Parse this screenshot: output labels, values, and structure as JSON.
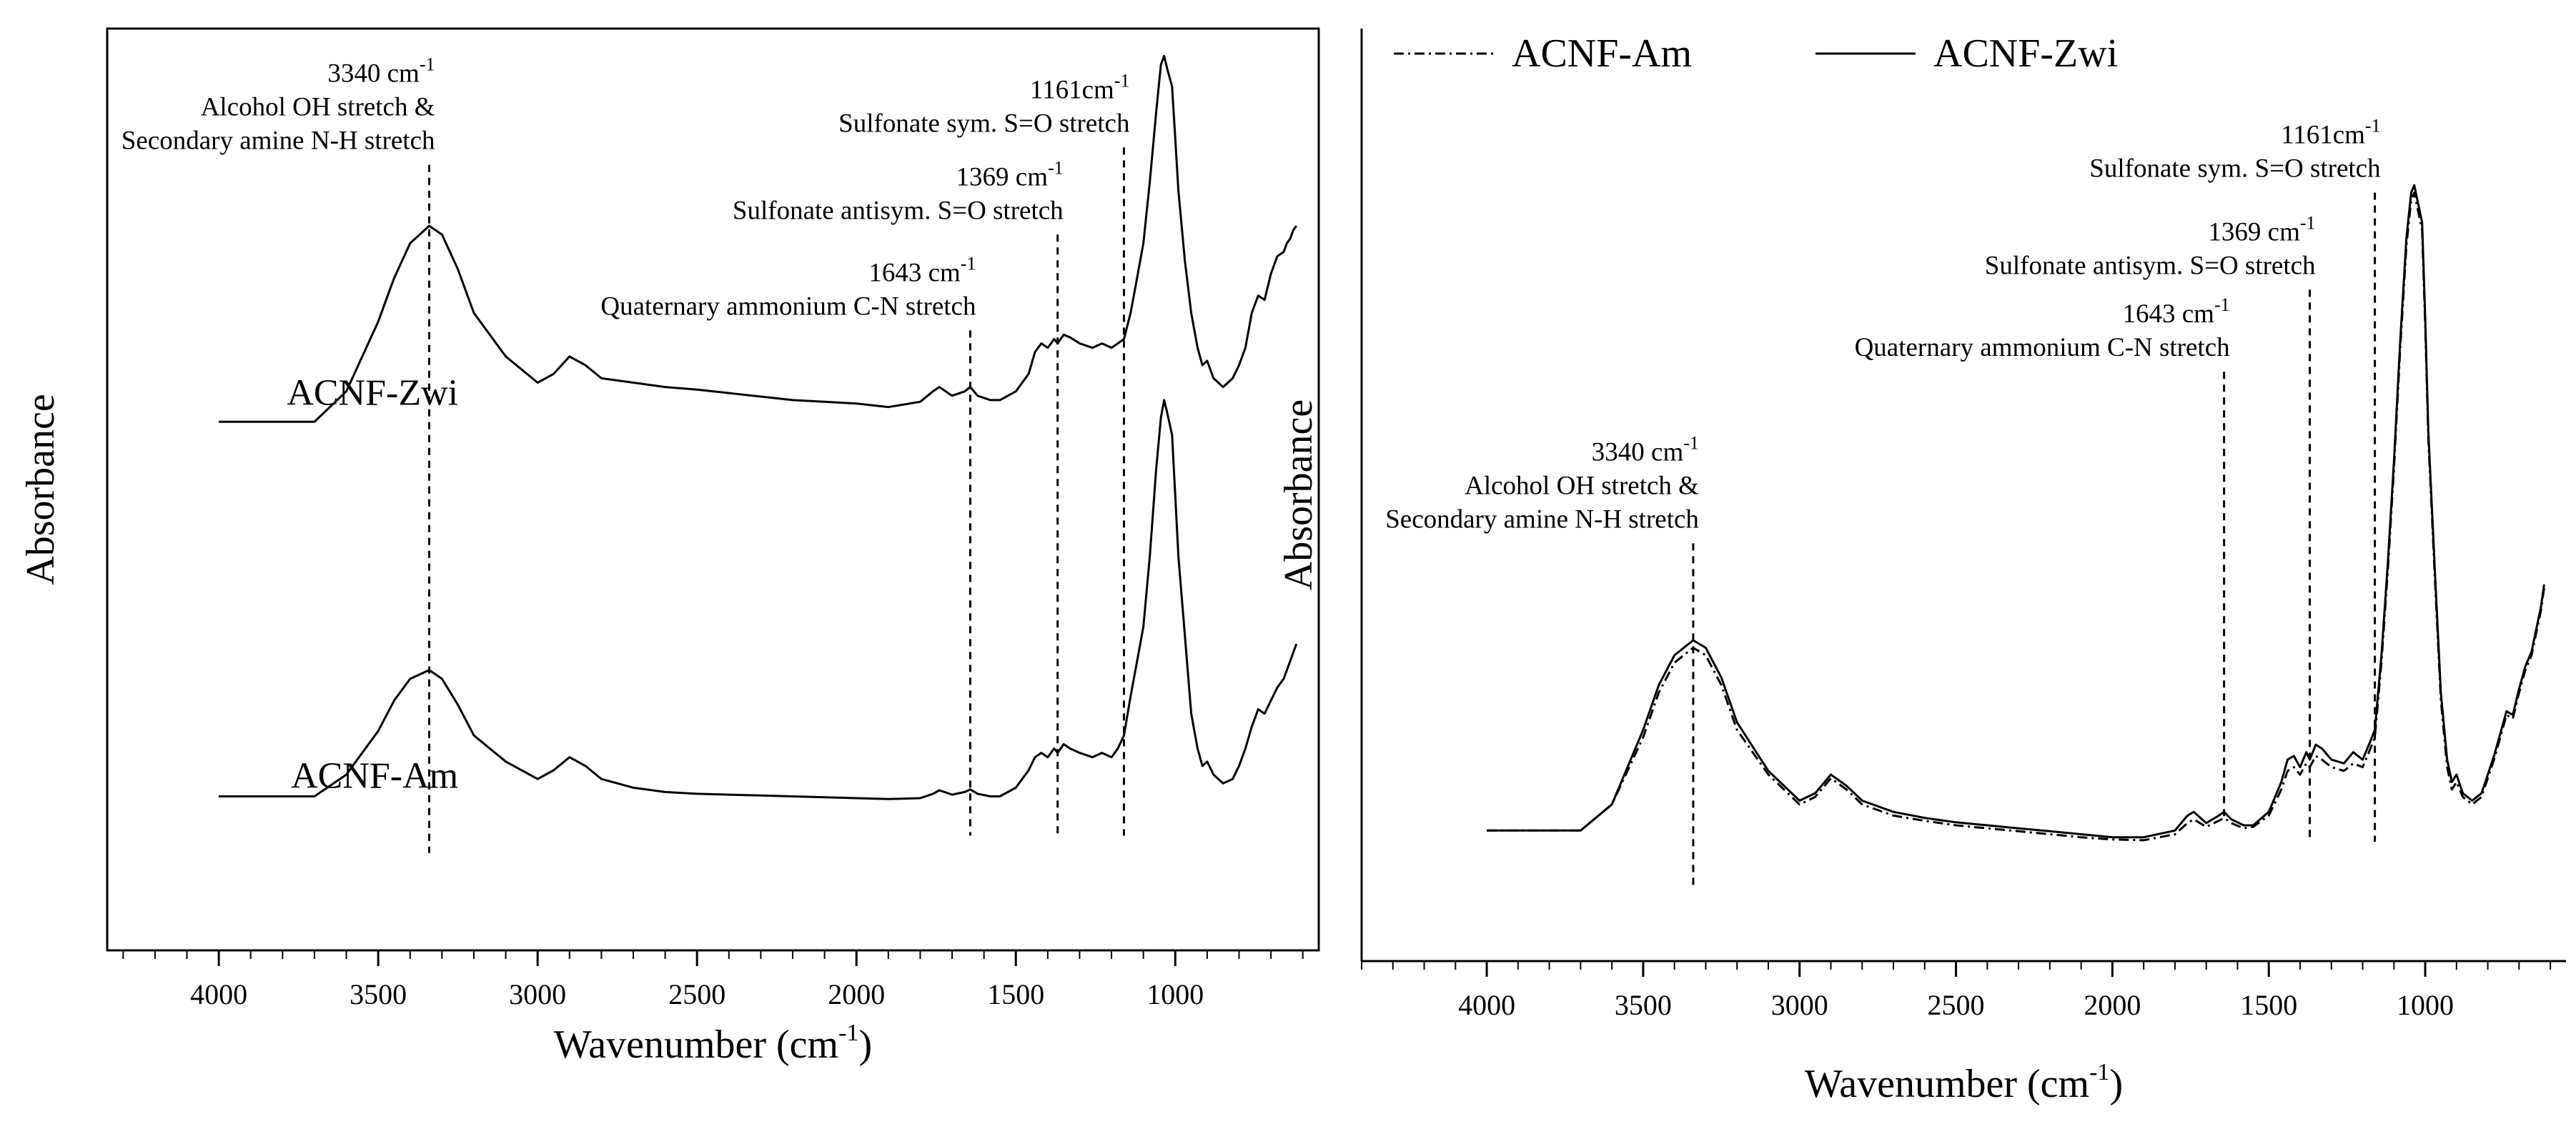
{
  "colors": {
    "axis": "#000000",
    "trace": "#000000",
    "background": "#ffffff"
  },
  "chart_data": [
    {
      "type": "line",
      "panel": "left",
      "title": "",
      "xlabel": "Wavenumber (cm",
      "xlabel_sup": "-1",
      "xlabel_close": ")",
      "ylabel": "Absorbance",
      "xlim": [
        4350,
        550
      ],
      "ylim": [
        0,
        1
      ],
      "x_ticks": [
        4000,
        3500,
        3000,
        2500,
        2000,
        1500,
        1000
      ],
      "x_tick_labels": [
        "4000",
        "3500",
        "3000",
        "2500",
        "2000",
        "1500",
        "1000"
      ],
      "series": [
        {
          "name": "ACNF-Zwi",
          "style": "solid",
          "label_anchor": [
            4000,
            0.58
          ],
          "x": [
            4000,
            3700,
            3600,
            3500,
            3450,
            3400,
            3340,
            3300,
            3250,
            3200,
            3100,
            3000,
            2950,
            2900,
            2850,
            2800,
            2700,
            2600,
            2500,
            2400,
            2300,
            2200,
            2100,
            2000,
            1900,
            1800,
            1760,
            1740,
            1700,
            1660,
            1643,
            1620,
            1580,
            1550,
            1500,
            1460,
            1440,
            1420,
            1400,
            1380,
            1369,
            1350,
            1330,
            1300,
            1260,
            1230,
            1200,
            1180,
            1161,
            1140,
            1120,
            1100,
            1080,
            1060,
            1045,
            1035,
            1025,
            1010,
            1000,
            990,
            970,
            950,
            930,
            915,
            900,
            880,
            850,
            820,
            800,
            780,
            760,
            740,
            720,
            700,
            680,
            660,
            650,
            640,
            630,
            620
          ],
          "y": [
            0.575,
            0.575,
            0.61,
            0.69,
            0.74,
            0.78,
            0.8,
            0.79,
            0.75,
            0.7,
            0.65,
            0.62,
            0.63,
            0.65,
            0.64,
            0.625,
            0.62,
            0.615,
            0.612,
            0.608,
            0.604,
            0.6,
            0.598,
            0.596,
            0.592,
            0.598,
            0.61,
            0.615,
            0.605,
            0.61,
            0.615,
            0.605,
            0.6,
            0.6,
            0.61,
            0.63,
            0.655,
            0.665,
            0.66,
            0.67,
            0.665,
            0.675,
            0.672,
            0.665,
            0.66,
            0.665,
            0.66,
            0.665,
            0.67,
            0.7,
            0.74,
            0.78,
            0.85,
            0.93,
            0.985,
            0.995,
            0.98,
            0.96,
            0.9,
            0.84,
            0.76,
            0.7,
            0.66,
            0.64,
            0.645,
            0.625,
            0.615,
            0.625,
            0.64,
            0.66,
            0.7,
            0.72,
            0.715,
            0.745,
            0.765,
            0.77,
            0.78,
            0.785,
            0.795,
            0.8
          ]
        },
        {
          "name": "ACNF-Am",
          "style": "solid",
          "label_anchor": [
            4000,
            0.14
          ],
          "x": [
            4000,
            3700,
            3600,
            3500,
            3450,
            3400,
            3340,
            3300,
            3250,
            3200,
            3100,
            3000,
            2950,
            2900,
            2850,
            2800,
            2700,
            2600,
            2500,
            2400,
            2300,
            2200,
            2100,
            2000,
            1900,
            1800,
            1760,
            1740,
            1700,
            1660,
            1643,
            1620,
            1580,
            1550,
            1500,
            1460,
            1440,
            1420,
            1400,
            1380,
            1369,
            1350,
            1330,
            1300,
            1260,
            1230,
            1200,
            1180,
            1161,
            1140,
            1120,
            1100,
            1080,
            1060,
            1045,
            1035,
            1025,
            1010,
            1000,
            990,
            970,
            950,
            930,
            915,
            900,
            880,
            850,
            820,
            800,
            780,
            760,
            740,
            720,
            700,
            680,
            660,
            650,
            640,
            630,
            620
          ],
          "y": [
            0.145,
            0.145,
            0.17,
            0.22,
            0.255,
            0.28,
            0.29,
            0.28,
            0.25,
            0.215,
            0.185,
            0.165,
            0.175,
            0.19,
            0.18,
            0.165,
            0.155,
            0.15,
            0.148,
            0.147,
            0.146,
            0.145,
            0.144,
            0.143,
            0.142,
            0.143,
            0.148,
            0.152,
            0.147,
            0.15,
            0.153,
            0.148,
            0.145,
            0.145,
            0.155,
            0.175,
            0.19,
            0.195,
            0.19,
            0.2,
            0.195,
            0.205,
            0.2,
            0.195,
            0.19,
            0.195,
            0.19,
            0.2,
            0.215,
            0.26,
            0.3,
            0.34,
            0.42,
            0.52,
            0.58,
            0.6,
            0.585,
            0.56,
            0.49,
            0.42,
            0.33,
            0.24,
            0.2,
            0.18,
            0.185,
            0.17,
            0.16,
            0.165,
            0.18,
            0.2,
            0.225,
            0.245,
            0.24,
            0.255,
            0.27,
            0.28,
            0.29,
            0.3,
            0.31,
            0.32
          ]
        }
      ],
      "annotations": [
        {
          "x": 3340,
          "top": 0.87,
          "bottom": 0.08,
          "lines": [
            "3340 cm",
            "Alcohol OH stretch &",
            "Secondary amine N-H stretch"
          ],
          "sup": "-1"
        },
        {
          "x": 1643,
          "top": 0.68,
          "bottom": 0.1,
          "lines": [
            "1643 cm",
            "Quaternary ammonium C-N stretch"
          ],
          "sup": "-1"
        },
        {
          "x": 1369,
          "top": 0.79,
          "bottom": 0.1,
          "lines": [
            "1369 cm",
            "Sulfonate antisym. S=O stretch"
          ],
          "sup": "-1"
        },
        {
          "x": 1161,
          "top": 0.89,
          "bottom": 0.1,
          "lines": [
            "1161cm",
            "Sulfonate sym. S=O stretch"
          ],
          "sup": "-1"
        }
      ]
    },
    {
      "type": "line",
      "panel": "right",
      "title": "",
      "xlabel": "Wavenumber (cm",
      "xlabel_sup": "-1",
      "xlabel_close": ")",
      "ylabel": "Absorbance",
      "xlim": [
        4400,
        550
      ],
      "ylim": [
        0,
        1
      ],
      "x_ticks": [
        4000,
        3500,
        3000,
        2500,
        2000,
        1500,
        1000
      ],
      "x_tick_labels": [
        "4000",
        "3500",
        "3000",
        "2500",
        "2000",
        "1500",
        "1000"
      ],
      "legend": {
        "placement": "top-left",
        "entries": [
          {
            "name": "ACNF-Am",
            "style": "dashdot"
          },
          {
            "name": "ACNF-Zwi",
            "style": "solid"
          }
        ]
      },
      "series": [
        {
          "name": "ACNF-Am",
          "style": "dashdot",
          "x": [
            4000,
            3700,
            3600,
            3500,
            3450,
            3400,
            3340,
            3300,
            3250,
            3200,
            3100,
            3000,
            2950,
            2900,
            2850,
            2800,
            2700,
            2600,
            2500,
            2400,
            2300,
            2200,
            2100,
            2000,
            1900,
            1800,
            1760,
            1740,
            1700,
            1660,
            1643,
            1620,
            1580,
            1550,
            1500,
            1460,
            1440,
            1420,
            1400,
            1380,
            1369,
            1350,
            1330,
            1300,
            1260,
            1230,
            1200,
            1180,
            1161,
            1140,
            1120,
            1100,
            1080,
            1060,
            1045,
            1035,
            1025,
            1010,
            1000,
            990,
            970,
            950,
            930,
            915,
            900,
            880,
            850,
            820,
            800,
            780,
            760,
            740,
            720,
            700,
            680,
            660,
            650,
            640,
            630,
            620
          ],
          "y": [
            0.075,
            0.075,
            0.11,
            0.2,
            0.26,
            0.3,
            0.32,
            0.31,
            0.27,
            0.21,
            0.15,
            0.11,
            0.12,
            0.145,
            0.13,
            0.11,
            0.095,
            0.088,
            0.082,
            0.078,
            0.074,
            0.07,
            0.066,
            0.063,
            0.062,
            0.07,
            0.085,
            0.09,
            0.08,
            0.088,
            0.092,
            0.085,
            0.078,
            0.08,
            0.095,
            0.13,
            0.155,
            0.16,
            0.15,
            0.165,
            0.16,
            0.175,
            0.17,
            0.16,
            0.155,
            0.165,
            0.16,
            0.18,
            0.2,
            0.3,
            0.42,
            0.56,
            0.72,
            0.86,
            0.92,
            0.93,
            0.91,
            0.88,
            0.75,
            0.6,
            0.42,
            0.25,
            0.16,
            0.13,
            0.14,
            0.12,
            0.11,
            0.12,
            0.145,
            0.17,
            0.2,
            0.23,
            0.225,
            0.26,
            0.29,
            0.31,
            0.33,
            0.35,
            0.37,
            0.4
          ]
        },
        {
          "name": "ACNF-Zwi",
          "style": "solid",
          "x": [
            4000,
            3700,
            3600,
            3500,
            3450,
            3400,
            3340,
            3300,
            3250,
            3200,
            3100,
            3000,
            2950,
            2900,
            2850,
            2800,
            2700,
            2600,
            2500,
            2400,
            2300,
            2200,
            2100,
            2000,
            1900,
            1800,
            1760,
            1740,
            1700,
            1660,
            1643,
            1620,
            1580,
            1550,
            1500,
            1460,
            1440,
            1420,
            1400,
            1380,
            1369,
            1350,
            1330,
            1300,
            1260,
            1230,
            1200,
            1180,
            1161,
            1140,
            1120,
            1100,
            1080,
            1060,
            1045,
            1035,
            1025,
            1010,
            1000,
            990,
            970,
            950,
            930,
            915,
            900,
            880,
            850,
            820,
            800,
            780,
            760,
            740,
            720,
            700,
            680,
            660,
            650,
            640,
            630,
            620
          ],
          "y": [
            0.075,
            0.075,
            0.11,
            0.21,
            0.27,
            0.31,
            0.33,
            0.32,
            0.28,
            0.22,
            0.155,
            0.115,
            0.125,
            0.15,
            0.135,
            0.115,
            0.1,
            0.092,
            0.086,
            0.082,
            0.078,
            0.074,
            0.07,
            0.066,
            0.066,
            0.075,
            0.095,
            0.1,
            0.085,
            0.095,
            0.1,
            0.09,
            0.082,
            0.082,
            0.1,
            0.14,
            0.17,
            0.175,
            0.16,
            0.18,
            0.17,
            0.19,
            0.185,
            0.17,
            0.165,
            0.18,
            0.17,
            0.19,
            0.21,
            0.31,
            0.43,
            0.57,
            0.73,
            0.87,
            0.93,
            0.94,
            0.92,
            0.89,
            0.76,
            0.61,
            0.43,
            0.26,
            0.17,
            0.14,
            0.15,
            0.125,
            0.115,
            0.125,
            0.15,
            0.175,
            0.205,
            0.235,
            0.23,
            0.265,
            0.295,
            0.315,
            0.335,
            0.355,
            0.375,
            0.405
          ]
        }
      ],
      "annotations": [
        {
          "x": 3340,
          "top": 0.46,
          "bottom": 0.0,
          "lines": [
            "3340 cm",
            "Alcohol OH stretch &",
            "Secondary amine N-H stretch"
          ],
          "sup": "-1"
        },
        {
          "x": 1643,
          "top": 0.69,
          "bottom": 0.09,
          "lines": [
            "1643 cm",
            "Quaternary ammonium C-N stretch"
          ],
          "sup": "-1"
        },
        {
          "x": 1369,
          "top": 0.8,
          "bottom": 0.06,
          "lines": [
            "1369 cm",
            "Sulfonate antisym. S=O stretch"
          ],
          "sup": "-1"
        },
        {
          "x": 1161,
          "top": 0.93,
          "bottom": 0.06,
          "lines": [
            "1161cm",
            "Sulfonate sym. S=O stretch"
          ],
          "sup": "-1"
        }
      ]
    }
  ]
}
